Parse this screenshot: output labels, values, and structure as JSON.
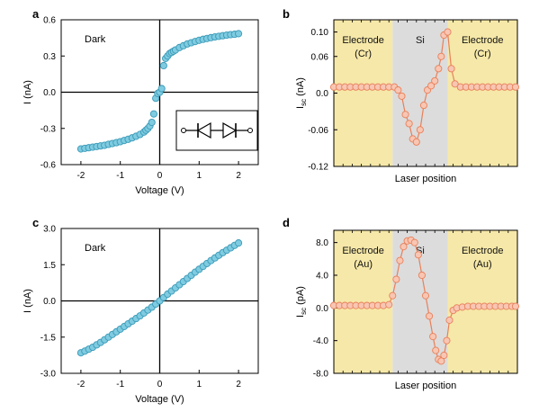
{
  "chart_data": [
    {
      "panel_label": "a",
      "type": "scatter",
      "annotation": "Dark",
      "xlabel": "Voltage (V)",
      "ylabel": "I (nA)",
      "xlim": [
        -2.5,
        2.5
      ],
      "ylim": [
        -0.6,
        0.6
      ],
      "xticks": [
        -2,
        -1,
        0,
        1,
        2
      ],
      "xtick_labels": [
        "-2",
        "-1",
        "0",
        "1",
        "2"
      ],
      "yticks": [
        -0.6,
        -0.3,
        0.0,
        0.3,
        0.6
      ],
      "ytick_labels": [
        "-0.6",
        "-0.3",
        "0.0",
        "0.3",
        "0.6"
      ],
      "grid": false,
      "marker_color": "#7fcbe0",
      "marker_edge": "#3a9ab8",
      "inset": "back-to-back diodes circuit symbol",
      "x": [
        -2.0,
        -1.9,
        -1.8,
        -1.7,
        -1.6,
        -1.5,
        -1.4,
        -1.3,
        -1.2,
        -1.1,
        -1.0,
        -0.9,
        -0.8,
        -0.7,
        -0.6,
        -0.5,
        -0.4,
        -0.35,
        -0.3,
        -0.25,
        -0.2,
        -0.15,
        -0.1,
        -0.05,
        0.0,
        0.05,
        0.1,
        0.15,
        0.2,
        0.25,
        0.3,
        0.35,
        0.4,
        0.5,
        0.6,
        0.7,
        0.8,
        0.9,
        1.0,
        1.1,
        1.2,
        1.3,
        1.4,
        1.5,
        1.6,
        1.7,
        1.8,
        1.9,
        2.0
      ],
      "y": [
        -0.47,
        -0.465,
        -0.46,
        -0.455,
        -0.45,
        -0.445,
        -0.44,
        -0.432,
        -0.425,
        -0.418,
        -0.41,
        -0.4,
        -0.39,
        -0.378,
        -0.365,
        -0.35,
        -0.33,
        -0.315,
        -0.3,
        -0.28,
        -0.25,
        -0.18,
        -0.05,
        -0.01,
        0.0,
        0.03,
        0.22,
        0.28,
        0.3,
        0.32,
        0.33,
        0.34,
        0.35,
        0.37,
        0.385,
        0.4,
        0.41,
        0.42,
        0.43,
        0.438,
        0.445,
        0.452,
        0.458,
        0.463,
        0.468,
        0.473,
        0.477,
        0.48,
        0.485
      ]
    },
    {
      "panel_label": "b",
      "type": "line",
      "xlabel": "Laser position",
      "ylabel": "Isc (nA)",
      "ylabel_main": "I",
      "ylabel_sub": "sc",
      "ylabel_unit": " (nA)",
      "xlim": [
        0,
        100
      ],
      "ylim": [
        -0.12,
        0.12
      ],
      "yticks": [
        -0.12,
        -0.06,
        0.0,
        0.06,
        0.1
      ],
      "ytick_labels": [
        "-0.12",
        "-0.06",
        "0.0",
        "0.06",
        "0.10"
      ],
      "grid": false,
      "marker_color": "#f8c6b3",
      "marker_edge": "#e8805a",
      "line_color": "#e8805a",
      "regions": [
        {
          "label_lines": [
            "Electrode",
            "(Cr)"
          ],
          "x0": 0,
          "x1": 32,
          "color": "#f6e8a8"
        },
        {
          "label_lines": [
            "Si"
          ],
          "x0": 32,
          "x1": 62,
          "color": "#dcdcdc"
        },
        {
          "label_lines": [
            "Electrode",
            "(Cr)"
          ],
          "x0": 62,
          "x1": 100,
          "color": "#f6e8a8"
        }
      ],
      "x": [
        0,
        3,
        6,
        9,
        12,
        15,
        18,
        21,
        24,
        27,
        30,
        33,
        35,
        37,
        39,
        41,
        43,
        45,
        47,
        49,
        51,
        53,
        55,
        57,
        58.5,
        60,
        62,
        64,
        66,
        69,
        72,
        75,
        78,
        81,
        84,
        87,
        90,
        93,
        96,
        99
      ],
      "y": [
        0.01,
        0.01,
        0.01,
        0.01,
        0.01,
        0.01,
        0.01,
        0.01,
        0.01,
        0.01,
        0.01,
        0.01,
        0.005,
        -0.005,
        -0.035,
        -0.05,
        -0.075,
        -0.08,
        -0.06,
        -0.02,
        0.005,
        0.012,
        0.02,
        0.04,
        0.06,
        0.095,
        0.1,
        0.04,
        0.015,
        0.01,
        0.01,
        0.01,
        0.01,
        0.01,
        0.01,
        0.01,
        0.01,
        0.01,
        0.01,
        0.01
      ]
    },
    {
      "panel_label": "c",
      "type": "scatter",
      "annotation": "Dark",
      "xlabel": "Voltage (V)",
      "ylabel": "I (nA)",
      "xlim": [
        -2.5,
        2.5
      ],
      "ylim": [
        -3.0,
        3.0
      ],
      "xticks": [
        -2,
        -1,
        0,
        1,
        2
      ],
      "xtick_labels": [
        "-2",
        "-1",
        "0",
        "1",
        "2"
      ],
      "yticks": [
        -3.0,
        -1.5,
        0.0,
        1.5,
        3.0
      ],
      "ytick_labels": [
        "-3.0",
        "-1.5",
        "0.0",
        "1.5",
        "3.0"
      ],
      "grid": false,
      "marker_color": "#7fcbe0",
      "marker_edge": "#3a9ab8",
      "x": [
        -2.0,
        -1.9,
        -1.8,
        -1.7,
        -1.6,
        -1.5,
        -1.4,
        -1.3,
        -1.2,
        -1.1,
        -1.0,
        -0.9,
        -0.8,
        -0.7,
        -0.6,
        -0.5,
        -0.4,
        -0.3,
        -0.2,
        -0.1,
        0.0,
        0.1,
        0.2,
        0.3,
        0.4,
        0.5,
        0.6,
        0.7,
        0.8,
        0.9,
        1.0,
        1.1,
        1.2,
        1.3,
        1.4,
        1.5,
        1.6,
        1.7,
        1.8,
        1.9,
        2.0
      ],
      "y": [
        -2.15,
        -2.08,
        -2.0,
        -1.92,
        -1.82,
        -1.72,
        -1.61,
        -1.5,
        -1.39,
        -1.28,
        -1.17,
        -1.06,
        -0.95,
        -0.84,
        -0.73,
        -0.62,
        -0.5,
        -0.38,
        -0.26,
        -0.13,
        0.0,
        0.14,
        0.28,
        0.41,
        0.54,
        0.67,
        0.8,
        0.93,
        1.06,
        1.19,
        1.31,
        1.43,
        1.55,
        1.67,
        1.78,
        1.89,
        2.0,
        2.1,
        2.2,
        2.3,
        2.4
      ]
    },
    {
      "panel_label": "d",
      "type": "line",
      "xlabel": "Laser position",
      "ylabel": "Isc (pA)",
      "ylabel_main": "I",
      "ylabel_sub": "sc",
      "ylabel_unit": " (pA)",
      "xlim": [
        0,
        100
      ],
      "ylim": [
        -8.0,
        9.5
      ],
      "yticks": [
        -8.0,
        -4.0,
        0.0,
        4.0,
        8.0
      ],
      "ytick_labels": [
        "-8.0",
        "-4.0",
        "0.0",
        "4.0",
        "8.0"
      ],
      "grid": false,
      "marker_color": "#f8c6b3",
      "marker_edge": "#e8805a",
      "line_color": "#e8805a",
      "regions": [
        {
          "label_lines": [
            "Electrode",
            "(Au)"
          ],
          "x0": 0,
          "x1": 32,
          "color": "#f6e8a8"
        },
        {
          "label_lines": [
            "Si"
          ],
          "x0": 32,
          "x1": 62,
          "color": "#dcdcdc"
        },
        {
          "label_lines": [
            "Electrode",
            "(Au)"
          ],
          "x0": 62,
          "x1": 100,
          "color": "#f6e8a8"
        }
      ],
      "x": [
        0,
        3,
        6,
        9,
        12,
        15,
        18,
        21,
        24,
        27,
        30,
        32,
        34,
        36,
        38,
        40,
        42,
        44,
        46,
        48,
        50,
        52,
        54,
        55.5,
        57,
        58.5,
        60,
        61.5,
        63,
        65,
        67,
        70,
        73,
        76,
        79,
        82,
        85,
        88,
        91,
        94,
        97,
        99
      ],
      "y": [
        0.3,
        0.3,
        0.3,
        0.3,
        0.3,
        0.3,
        0.3,
        0.3,
        0.3,
        0.3,
        0.4,
        1.5,
        3.5,
        5.8,
        7.5,
        8.2,
        8.3,
        8.0,
        6.5,
        4.0,
        1.5,
        -1.0,
        -3.5,
        -5.2,
        -6.3,
        -6.5,
        -5.8,
        -4.0,
        -1.5,
        -0.3,
        0.0,
        0.1,
        0.2,
        0.2,
        0.2,
        0.2,
        0.2,
        0.2,
        0.2,
        0.2,
        0.2,
        0.2
      ]
    }
  ]
}
